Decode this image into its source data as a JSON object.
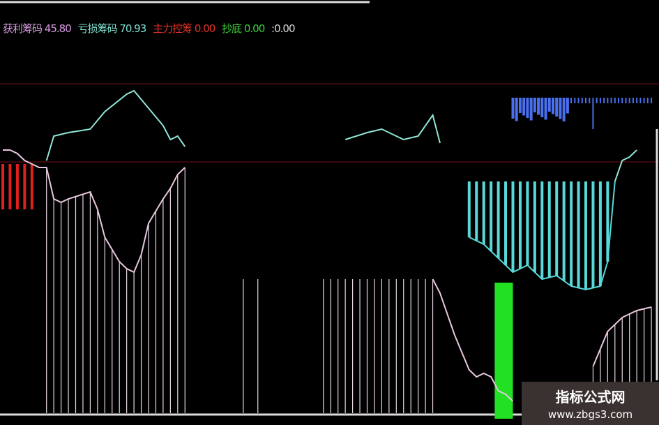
{
  "legend": [
    {
      "label": "获利筹码",
      "value": "45.80",
      "color": "#d79be0"
    },
    {
      "label": "亏损筹码",
      "value": "70.93",
      "color": "#7fe0d0"
    },
    {
      "label": "主力控筹",
      "value": "0.00",
      "color": "#e0302a"
    },
    {
      "label": "抄底",
      "value": "0.00",
      "color": "#3ad23a"
    },
    {
      "label": ":",
      "value": "0.00",
      "color": "#d8d8d8"
    }
  ],
  "watermark": {
    "title": "指标公式网",
    "url": "www.zbgs3.com"
  },
  "chart_data": {
    "type": "line",
    "colors": {
      "background": "#000000",
      "grid": "#3a0a0a",
      "profit": "#e8c8e0",
      "loss": "#8fe6d8",
      "red_bars": "#e0201c",
      "cyan_bars": "#58d8d8",
      "green_bar": "#22e022",
      "blue": "#4a70f0"
    },
    "series": [
      {
        "key": "loss",
        "points": [
          [
            6,
            74
          ],
          [
            7,
            81
          ],
          [
            9,
            82
          ],
          [
            12,
            83
          ],
          [
            14,
            88
          ],
          [
            17,
            93
          ],
          [
            18,
            94
          ],
          [
            20,
            89
          ],
          [
            22,
            84
          ],
          [
            23,
            80
          ],
          [
            24,
            81
          ],
          [
            25,
            78
          ],
          null,
          [
            47,
            80
          ],
          [
            50,
            82
          ],
          [
            52,
            83
          ],
          [
            55,
            80
          ],
          [
            57,
            81
          ],
          [
            58,
            84
          ],
          [
            59,
            87
          ],
          [
            60,
            79
          ],
          null,
          [
            84,
            68
          ],
          [
            85,
            74
          ],
          [
            86,
            75
          ],
          [
            87,
            77
          ]
        ]
      },
      {
        "key": "profit",
        "points": [
          [
            0,
            77
          ],
          [
            1,
            77
          ],
          [
            2,
            76
          ],
          [
            3,
            74
          ],
          [
            4,
            73
          ],
          [
            5,
            72
          ],
          [
            6,
            72
          ],
          [
            7,
            63
          ],
          [
            8,
            62
          ],
          [
            9,
            63
          ],
          [
            12,
            65
          ],
          [
            13,
            60
          ],
          [
            14,
            52
          ],
          [
            16,
            45
          ],
          [
            17,
            43
          ],
          [
            18,
            42
          ],
          [
            19,
            47
          ],
          [
            20,
            56
          ],
          [
            22,
            63
          ],
          [
            23,
            66
          ],
          [
            24,
            70
          ],
          [
            25,
            72
          ],
          null,
          [
            59,
            40
          ],
          [
            60,
            36
          ],
          [
            62,
            24
          ],
          [
            64,
            14
          ],
          [
            65,
            12
          ],
          [
            66,
            13
          ],
          [
            67,
            12
          ],
          [
            68,
            8
          ],
          [
            69,
            7
          ],
          [
            70,
            5
          ],
          null,
          [
            81,
            15
          ],
          [
            83,
            25
          ],
          [
            85,
            29
          ],
          [
            87,
            31
          ],
          [
            89,
            32
          ]
        ]
      },
      {
        "key": "cyan_lower",
        "points": [
          [
            64,
            52
          ],
          [
            66,
            50
          ],
          [
            68,
            46
          ],
          [
            70,
            42
          ],
          [
            72,
            44
          ],
          [
            74,
            40
          ],
          [
            76,
            41
          ],
          [
            78,
            38
          ],
          [
            80,
            37
          ],
          [
            82,
            38
          ],
          [
            83,
            45
          ],
          [
            84,
            68
          ]
        ]
      }
    ],
    "red_bars": {
      "from": 0,
      "to": 4,
      "top": 73,
      "bottom": 60
    },
    "white_sticks": [
      {
        "from": 6,
        "to": 25,
        "to_series": "profit"
      },
      {
        "at": [
          33,
          35
        ],
        "top": 40
      },
      {
        "from": 44,
        "to": 59,
        "top": 40
      },
      {
        "from": 81,
        "to": 89,
        "to_series": "profit"
      }
    ],
    "cyan_bars": {
      "from": 64,
      "to": 83,
      "top": 68
    },
    "green_bar": {
      "x": [
        67.5,
        70
      ],
      "top": 39,
      "bottom": 0
    },
    "blue_spikes": {
      "from": 70,
      "to": 89
    }
  }
}
